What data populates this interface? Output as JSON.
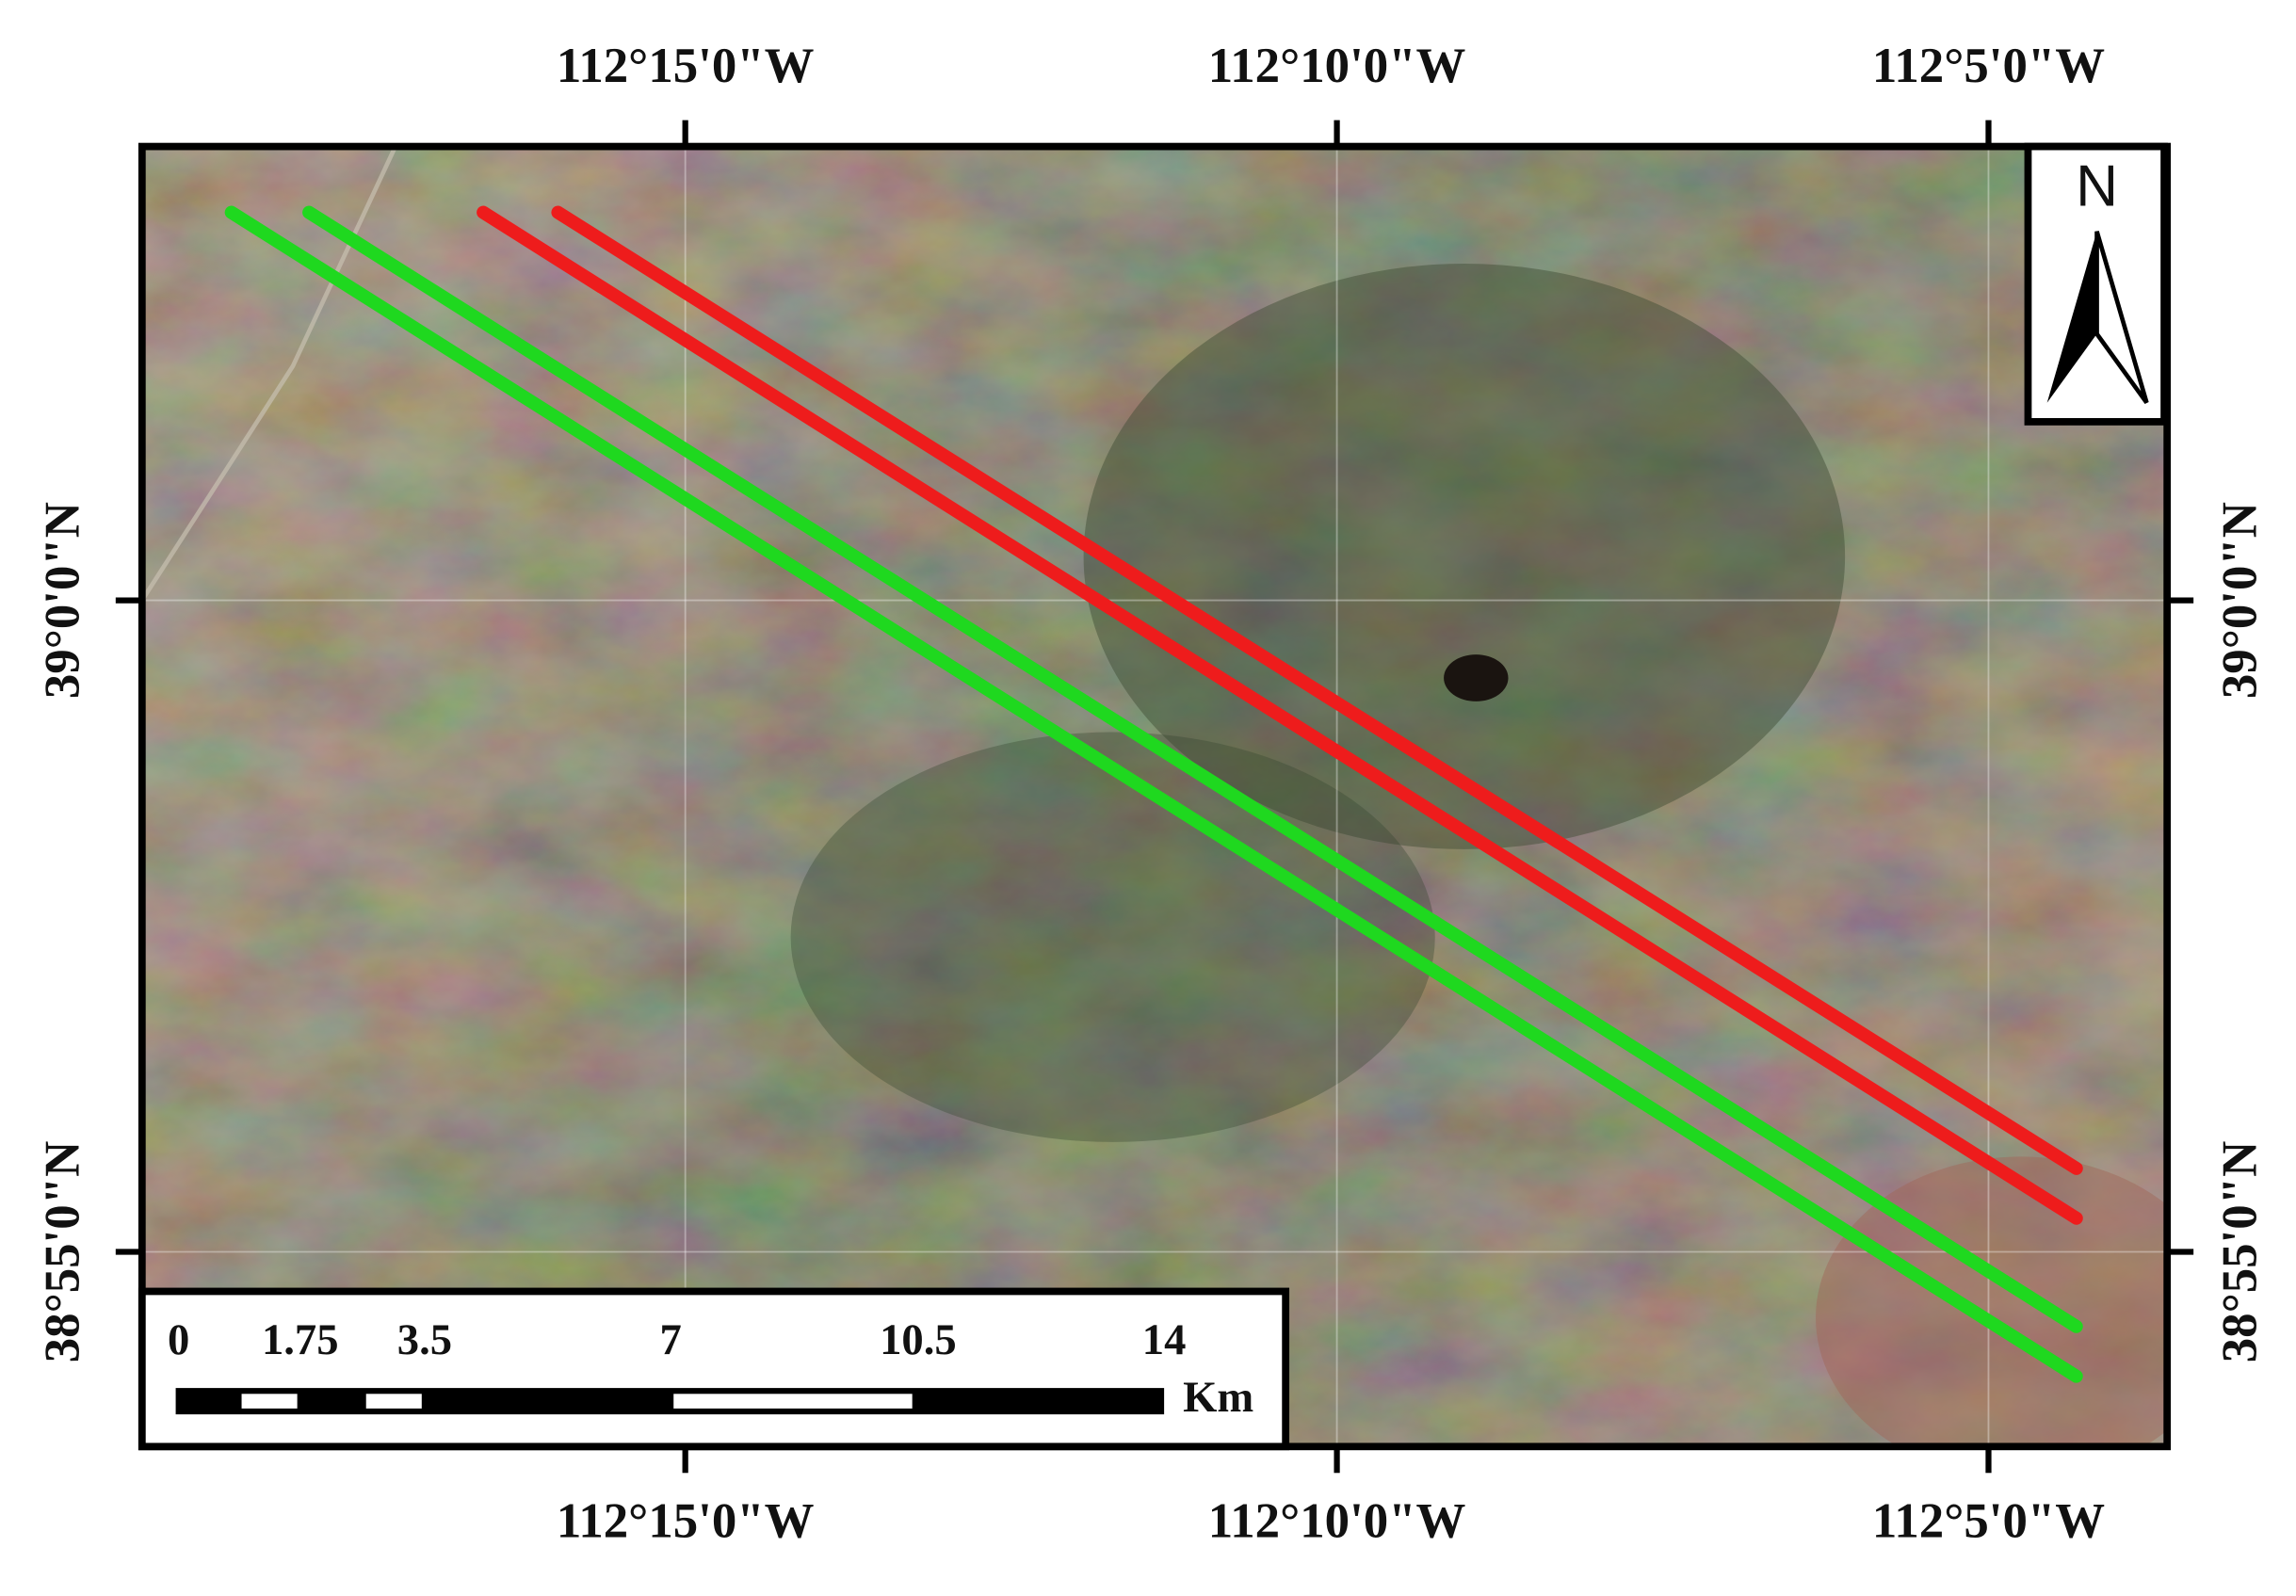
{
  "map": {
    "top_labels": [
      "112°15'0\"W",
      "112°10'0\"W",
      "112°5'0\"W"
    ],
    "bottom_labels": [
      "112°15'0\"W",
      "112°10'0\"W",
      "112°5'0\"W"
    ],
    "left_labels": [
      "39°0'0\"N",
      "38°55'0\"N"
    ],
    "right_labels": [
      "39°0'0\"N",
      "38°55'0\"N"
    ],
    "scale_bar": {
      "labels": [
        "0",
        "1.75",
        "3.5",
        "7",
        "10.5",
        "14"
      ],
      "unit": "Km"
    },
    "north": "N"
  }
}
